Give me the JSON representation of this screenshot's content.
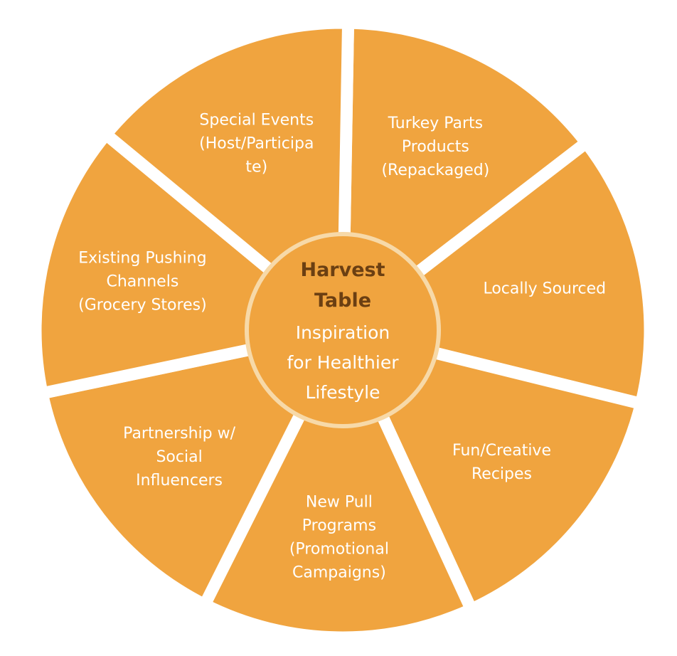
{
  "colors": {
    "segment_fill": "#F0A43F",
    "gap": "#FFFFFF",
    "segment_text": "#FFFFFF",
    "hub_fill": "#F0A43F",
    "hub_ring": "#F7D9A8",
    "hub_title_text": "#6B3F12",
    "hub_sub_text": "#FFFFFF"
  },
  "hub": {
    "title_lines": [
      "Harvest",
      "Table"
    ],
    "subtitle_lines": [
      "Inspiration",
      "for Healthier",
      "Lifestyle"
    ]
  },
  "segments": [
    {
      "id": "turkey-parts-products",
      "lines": [
        "Turkey Parts",
        "Products",
        "(Repackaged)"
      ]
    },
    {
      "id": "locally-sourced",
      "lines": [
        "Locally Sourced"
      ]
    },
    {
      "id": "fun-creative-recipes",
      "lines": [
        "Fun/Creative",
        "Recipes"
      ]
    },
    {
      "id": "new-pull-programs",
      "lines": [
        "New Pull",
        "Programs",
        "(Promotional",
        "Campaigns)"
      ]
    },
    {
      "id": "partnership-social-influencers",
      "lines": [
        "Partnership w/",
        "Social",
        "Influencers"
      ]
    },
    {
      "id": "existing-pushing-channels",
      "lines": [
        "Existing Pushing",
        "Channels",
        "(Grocery Stores)"
      ]
    },
    {
      "id": "special-events",
      "lines": [
        "Special Events",
        "(Host/Participa",
        "te)"
      ]
    }
  ]
}
